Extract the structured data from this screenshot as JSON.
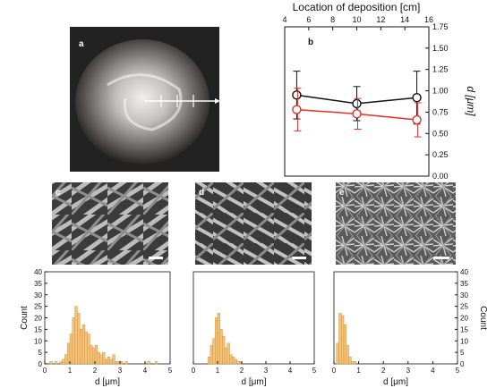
{
  "panel_labels": {
    "a": "a",
    "b": "b",
    "c": "c",
    "d": "d",
    "e": "e"
  },
  "colors": {
    "black_series": "#111111",
    "red_series": "#e0302a",
    "bar_fill": "#f5c27a",
    "bar_stroke": "#d09540"
  },
  "chart_data": [
    {
      "panel": "b",
      "type": "line",
      "title": "",
      "xlabel": "Location of deposition [cm]",
      "ylabel": "d [μm]",
      "xlim": [
        4,
        16
      ],
      "ylim": [
        0,
        1.75
      ],
      "x_ticks": [
        "4",
        "6",
        "8",
        "10",
        "12",
        "14",
        "16"
      ],
      "y_ticks": [
        "0.00",
        "0.25",
        "0.50",
        "0.75",
        "1.00",
        "1.25",
        "1.50",
        "1.75"
      ],
      "x": [
        5,
        10,
        15
      ],
      "series": [
        {
          "color": "#111111",
          "values": [
            0.95,
            0.85,
            0.92
          ],
          "err": [
            0.28,
            0.2,
            0.31
          ]
        },
        {
          "color": "#e0302a",
          "values": [
            0.78,
            0.73,
            0.66
          ],
          "err": [
            0.25,
            0.18,
            0.2
          ]
        }
      ]
    },
    {
      "panel": "c",
      "type": "bar",
      "xlabel": "d [μm]",
      "ylabel": "Count",
      "xlim": [
        0,
        5
      ],
      "ylim": [
        0,
        40
      ],
      "bin_width": 0.1,
      "bin_starts": [
        0.2,
        0.3,
        0.4,
        0.5,
        0.6,
        0.7,
        0.8,
        0.9,
        1.0,
        1.1,
        1.2,
        1.3,
        1.4,
        1.5,
        1.6,
        1.7,
        1.8,
        1.9,
        2.0,
        2.1,
        2.2,
        2.3,
        2.4,
        2.5,
        2.6,
        2.7,
        2.8,
        2.9,
        3.0,
        3.1,
        3.2,
        3.3,
        4.1,
        4.3,
        4.4
      ],
      "counts": [
        1,
        0,
        1,
        0,
        1,
        2,
        4,
        9,
        13,
        20,
        25,
        22,
        15,
        17,
        14,
        13,
        8,
        7,
        8,
        5,
        4,
        5,
        2,
        3,
        2,
        4,
        1,
        1,
        1,
        0,
        1,
        0,
        1,
        0,
        1
      ]
    },
    {
      "panel": "d",
      "type": "bar",
      "xlabel": "d [μm]",
      "xlim": [
        0,
        5
      ],
      "ylim": [
        0,
        40
      ],
      "bin_width": 0.1,
      "bin_starts": [
        0.6,
        0.7,
        0.8,
        0.9,
        1.0,
        1.1,
        1.2,
        1.3,
        1.4,
        1.5,
        1.6,
        1.7,
        1.8,
        1.9
      ],
      "counts": [
        3,
        8,
        11,
        20,
        22,
        15,
        12,
        7,
        9,
        4,
        3,
        2,
        1,
        1
      ]
    },
    {
      "panel": "e",
      "type": "bar",
      "xlabel": "d [μm]",
      "ylabel": "Count",
      "xlim": [
        0,
        5
      ],
      "ylim": [
        0,
        40
      ],
      "bin_width": 0.1,
      "bin_starts": [
        0.1,
        0.2,
        0.3,
        0.4,
        0.5,
        0.6,
        0.7,
        0.8
      ],
      "counts": [
        9,
        22,
        21,
        17,
        8,
        3,
        1,
        1
      ]
    }
  ],
  "hist_x_ticks": [
    "0",
    "1",
    "2",
    "3",
    "4",
    "5"
  ],
  "hist_y_ticks": [
    "0",
    "5",
    "10",
    "15",
    "20",
    "25",
    "30",
    "35",
    "40"
  ]
}
